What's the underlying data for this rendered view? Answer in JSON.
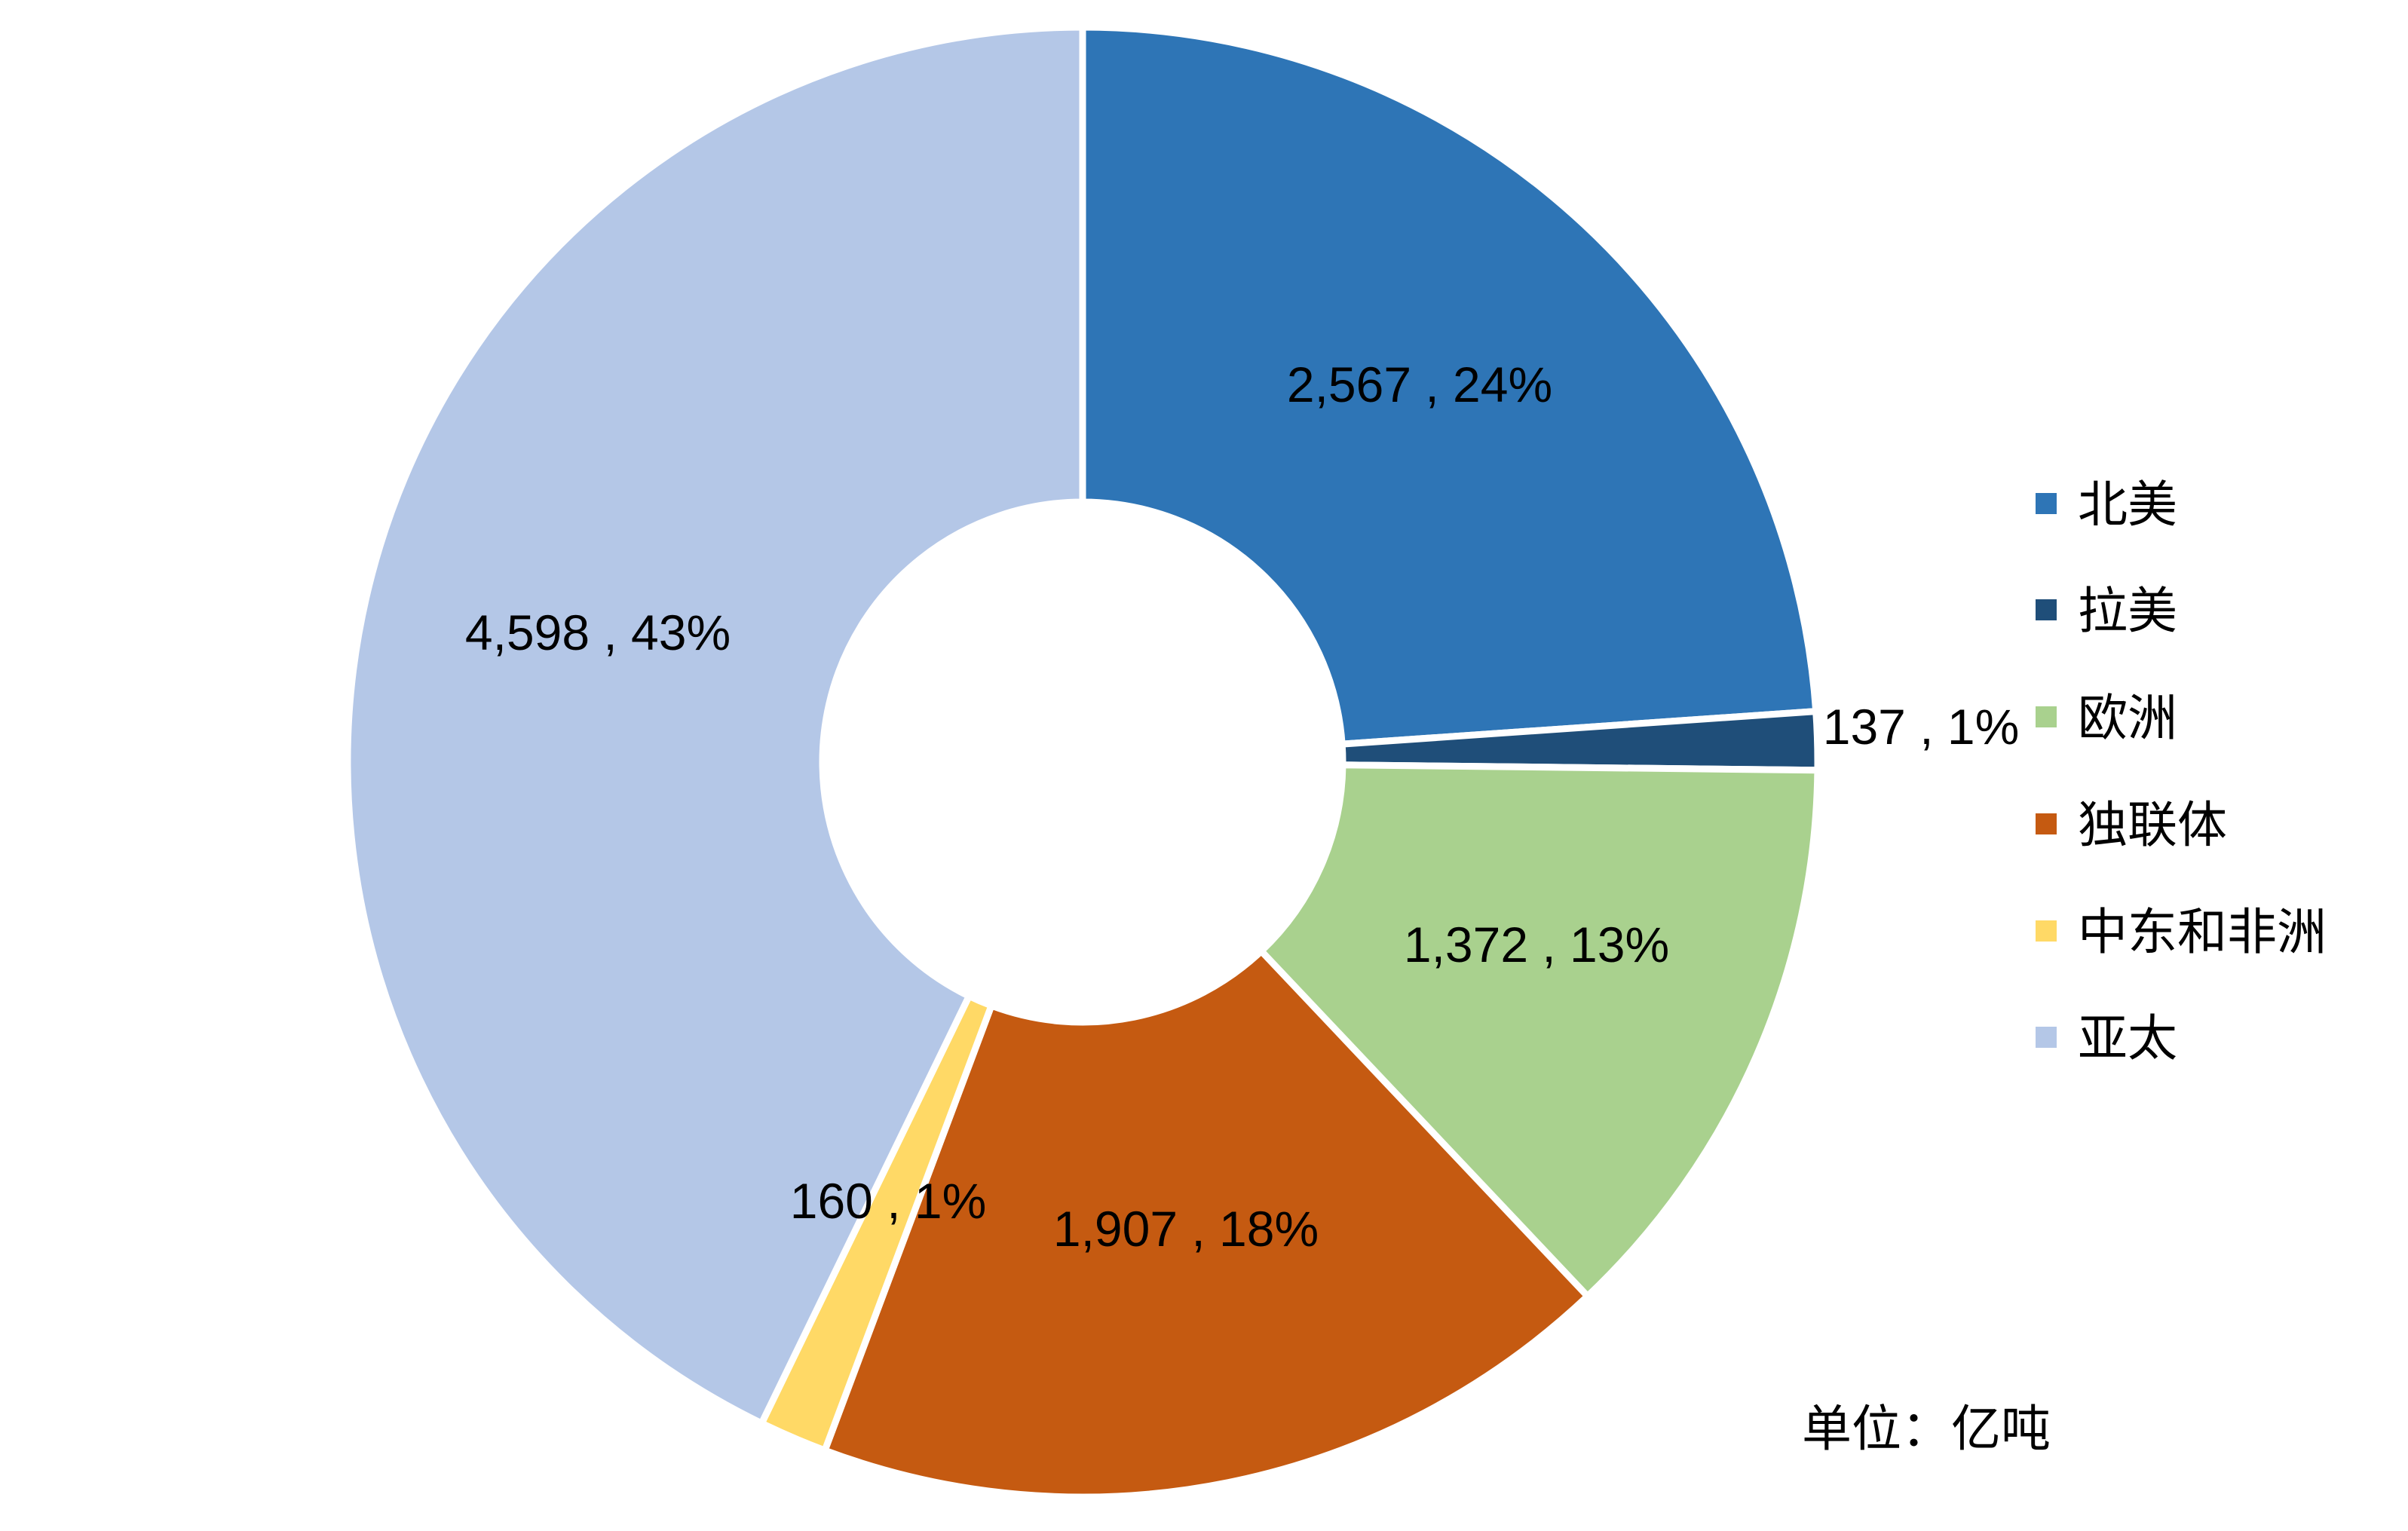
{
  "chart_data": {
    "type": "pie",
    "donut": true,
    "title": "",
    "unit": "单位：亿吨",
    "categories": [
      "北美",
      "拉美",
      "欧洲",
      "独联体",
      "中东和非洲",
      "亚太"
    ],
    "values": [
      2567,
      137,
      1372,
      1907,
      160,
      4598
    ],
    "percentages": [
      "24%",
      "1%",
      "13%",
      "18%",
      "1%",
      "43%"
    ],
    "labels": [
      "2,567 , 24%",
      "137 , 1%",
      "1,372 , 13%",
      "1,907 , 18%",
      "160 , 1%",
      "4,598 , 43%"
    ],
    "colors": [
      "#2E75B6",
      "#1F4E79",
      "#A9D18E",
      "#C55A11",
      "#FFD966",
      "#B4C7E7"
    ],
    "legend_position": "right",
    "start_angle": "12 o'clock",
    "direction": "clockwise"
  }
}
